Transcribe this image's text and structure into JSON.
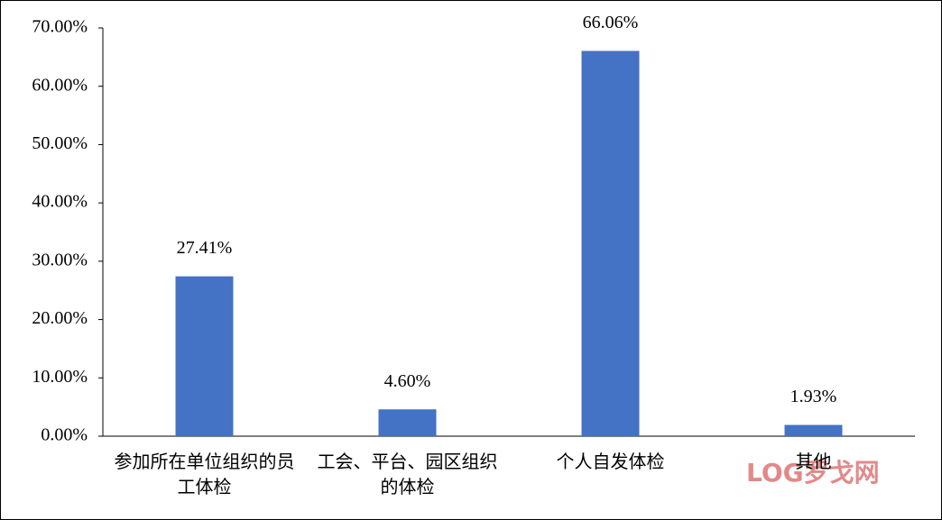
{
  "chart_data": {
    "type": "bar",
    "categories": [
      "参加所在单位组织的员工体检",
      "工会、平台、园区组织的体检",
      "个人自发体检",
      "其他"
    ],
    "values": [
      27.41,
      4.6,
      66.06,
      1.93
    ],
    "value_labels": [
      "27.41%",
      "4.60%",
      "66.06%",
      "1.93%"
    ],
    "color": "#4472c4",
    "ylim": [
      0,
      70
    ],
    "yticks": [
      {
        "value": 0,
        "label": "0.00%"
      },
      {
        "value": 10,
        "label": "10.00%"
      },
      {
        "value": 20,
        "label": "20.00%"
      },
      {
        "value": 30,
        "label": "30.00%"
      },
      {
        "value": 40,
        "label": "40.00%"
      },
      {
        "value": 50,
        "label": "50.00%"
      },
      {
        "value": 60,
        "label": "60.00%"
      },
      {
        "value": 70,
        "label": "70.00%"
      }
    ],
    "grid": false,
    "watermark": "LOG罗戈网"
  }
}
